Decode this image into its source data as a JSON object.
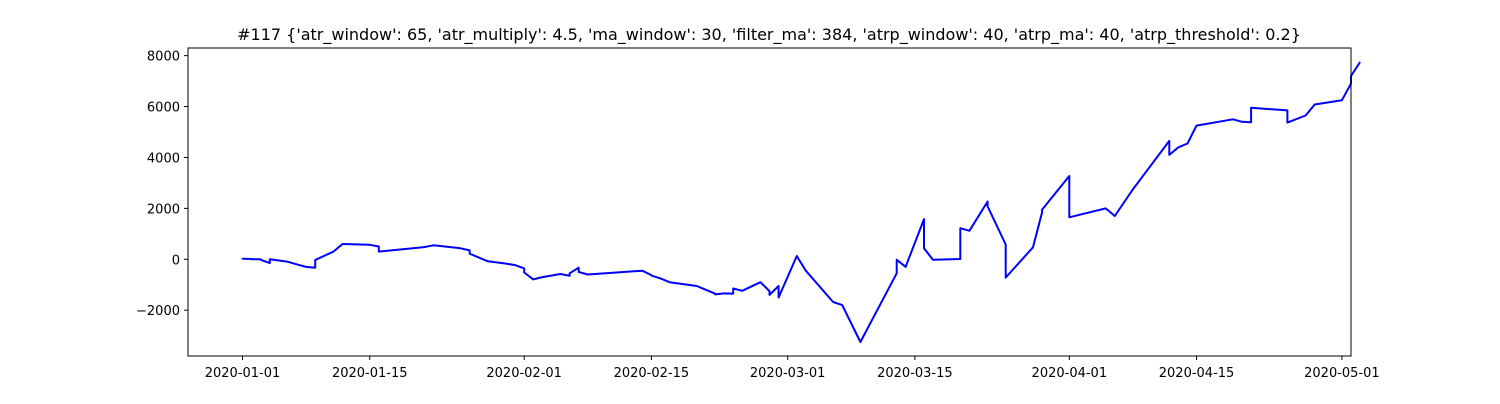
{
  "chart_data": {
    "type": "line",
    "title": "#117 {'atr_window': 65, 'atr_multiply': 4.5, 'ma_window': 30, 'filter_ma': 384, 'atrp_window': 40, 'atrp_ma': 40, 'atrp_threshold': 0.2}",
    "xlabel": "",
    "ylabel": "",
    "x_type": "date",
    "xlim": [
      "2019-12-26",
      "2020-05-02"
    ],
    "ylim": [
      -3800,
      8300
    ],
    "x_ticks": [
      "2020-01-01",
      "2020-01-15",
      "2020-02-01",
      "2020-02-15",
      "2020-03-01",
      "2020-03-15",
      "2020-04-01",
      "2020-04-15",
      "2020-05-01"
    ],
    "y_ticks": [
      -2000,
      0,
      2000,
      4000,
      6000,
      8000
    ],
    "y_tick_labels": [
      "−2000",
      "0",
      "2000",
      "4000",
      "6000",
      "8000"
    ],
    "grid": false,
    "line_color": "#0000ff",
    "series": [
      {
        "points": [
          [
            "2020-01-01",
            0
          ],
          [
            "2020-01-01",
            20
          ],
          [
            "2020-01-02",
            10
          ],
          [
            "2020-01-02",
            0
          ],
          [
            "2020-01-03",
            0
          ],
          [
            "2020-01-03",
            -20
          ],
          [
            "2020-01-04",
            -150
          ],
          [
            "2020-01-04",
            0
          ],
          [
            "2020-01-06",
            -100
          ],
          [
            "2020-01-07",
            -200
          ],
          [
            "2020-01-08",
            -300
          ],
          [
            "2020-01-09",
            -330
          ],
          [
            "2020-01-09",
            -30
          ],
          [
            "2020-01-11",
            300
          ],
          [
            "2020-01-12",
            600
          ],
          [
            "2020-01-15",
            570
          ],
          [
            "2020-01-16",
            500
          ],
          [
            "2020-01-16",
            300
          ],
          [
            "2020-01-21",
            480
          ],
          [
            "2020-01-22",
            550
          ],
          [
            "2020-01-25",
            430
          ],
          [
            "2020-01-26",
            350
          ],
          [
            "2020-01-26",
            220
          ],
          [
            "2020-01-28",
            -80
          ],
          [
            "2020-01-30",
            -170
          ],
          [
            "2020-01-31",
            -230
          ],
          [
            "2020-02-01",
            -360
          ],
          [
            "2020-02-01",
            -520
          ],
          [
            "2020-02-02",
            -790
          ],
          [
            "2020-02-03",
            -700
          ],
          [
            "2020-02-05",
            -580
          ],
          [
            "2020-02-06",
            -650
          ],
          [
            "2020-02-06",
            -550
          ],
          [
            "2020-02-07",
            -330
          ],
          [
            "2020-02-07",
            -500
          ],
          [
            "2020-02-08",
            -600
          ],
          [
            "2020-02-14",
            -450
          ],
          [
            "2020-02-15",
            -620
          ],
          [
            "2020-02-15",
            -640
          ],
          [
            "2020-02-16",
            -750
          ],
          [
            "2020-02-17",
            -900
          ],
          [
            "2020-02-20",
            -1050
          ],
          [
            "2020-02-21",
            -1200
          ],
          [
            "2020-02-22",
            -1350
          ],
          [
            "2020-02-22",
            -1380
          ],
          [
            "2020-02-23",
            -1340
          ],
          [
            "2020-02-24",
            -1350
          ],
          [
            "2020-02-24",
            -1150
          ],
          [
            "2020-02-25",
            -1240
          ],
          [
            "2020-02-27",
            -900
          ],
          [
            "2020-02-28",
            -1250
          ],
          [
            "2020-02-28",
            -1400
          ],
          [
            "2020-02-29",
            -1050
          ],
          [
            "2020-02-29",
            -1500
          ],
          [
            "2020-03-02",
            130
          ],
          [
            "2020-03-03",
            -450
          ],
          [
            "2020-03-06",
            -1680
          ],
          [
            "2020-03-07",
            -1800
          ],
          [
            "2020-03-09",
            -3250
          ],
          [
            "2020-03-13",
            -550
          ],
          [
            "2020-03-13",
            -20
          ],
          [
            "2020-03-14",
            -300
          ],
          [
            "2020-03-14",
            -280
          ],
          [
            "2020-03-16",
            1580
          ],
          [
            "2020-03-16",
            430
          ],
          [
            "2020-03-17",
            -20
          ],
          [
            "2020-03-20",
            10
          ],
          [
            "2020-03-20",
            1220
          ],
          [
            "2020-03-21",
            1120
          ],
          [
            "2020-03-23",
            2270
          ],
          [
            "2020-03-23",
            2080
          ],
          [
            "2020-03-25",
            580
          ],
          [
            "2020-03-25",
            -720
          ],
          [
            "2020-03-28",
            470
          ],
          [
            "2020-03-29",
            1850
          ],
          [
            "2020-03-29",
            1950
          ],
          [
            "2020-04-01",
            3270
          ],
          [
            "2020-04-01",
            1650
          ],
          [
            "2020-04-05",
            2000
          ],
          [
            "2020-04-06",
            1700
          ],
          [
            "2020-04-08",
            2750
          ],
          [
            "2020-04-12",
            4650
          ],
          [
            "2020-04-12",
            4100
          ],
          [
            "2020-04-13",
            4400
          ],
          [
            "2020-04-14",
            4550
          ],
          [
            "2020-04-15",
            5250
          ],
          [
            "2020-04-19",
            5500
          ],
          [
            "2020-04-20",
            5400
          ],
          [
            "2020-04-21",
            5380
          ],
          [
            "2020-04-21",
            5950
          ],
          [
            "2020-04-25",
            5850
          ],
          [
            "2020-04-25",
            5370
          ],
          [
            "2020-04-27",
            5650
          ],
          [
            "2020-04-28",
            6080
          ],
          [
            "2020-05-01",
            6250
          ],
          [
            "2020-05-02",
            6900
          ],
          [
            "2020-05-02",
            7200
          ],
          [
            "2020-05-03",
            7750
          ]
        ]
      }
    ]
  }
}
